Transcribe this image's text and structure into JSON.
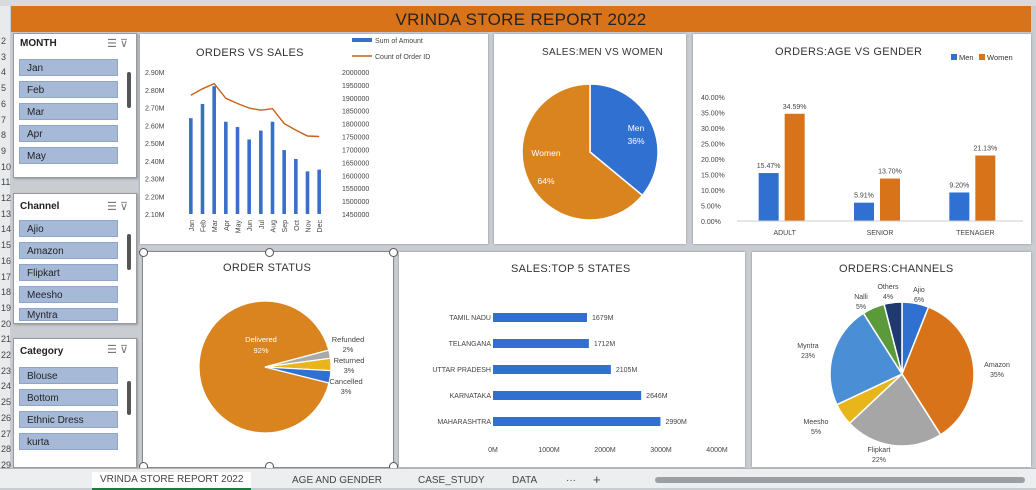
{
  "report_title": "VRINDA STORE REPORT 2022",
  "row_numbers": [
    "2",
    "3",
    "4",
    "5",
    "6",
    "7",
    "8",
    "9",
    "10",
    "11",
    "12",
    "13",
    "14",
    "15",
    "16",
    "17",
    "18",
    "19",
    "20",
    "21",
    "22",
    "23",
    "24",
    "25",
    "26",
    "27",
    "28",
    "29"
  ],
  "slicers": {
    "month": {
      "header": "MONTH",
      "items": [
        "Jan",
        "Feb",
        "Mar",
        "Apr",
        "May"
      ]
    },
    "channel": {
      "header": "Channel",
      "items": [
        "Ajio",
        "Amazon",
        "Flipkart",
        "Meesho",
        "Myntra"
      ]
    },
    "category": {
      "header": "Category",
      "items": [
        "Blouse",
        "Bottom",
        "Ethnic Dress",
        "kurta"
      ]
    }
  },
  "tabs": [
    "VRINDA STORE REPORT 2022",
    "AGE AND GENDER",
    "CASE_STUDY",
    "DATA",
    "···",
    "+"
  ],
  "chart_data": [
    {
      "type": "bar",
      "title": "ORDERS VS SALES",
      "categories": [
        "Jan",
        "Feb",
        "Mar",
        "Apr",
        "May",
        "Jun",
        "Jul",
        "Aug",
        "Sep",
        "Oct",
        "Nov",
        "Dec"
      ],
      "series": [
        {
          "name": "Sum of Amount",
          "type": "bar",
          "axis": "left",
          "values": [
            2.64,
            2.72,
            2.82,
            2.62,
            2.59,
            2.52,
            2.57,
            2.62,
            2.46,
            2.41,
            2.34,
            2.35
          ]
        },
        {
          "name": "Count of Order ID",
          "type": "line",
          "axis": "right",
          "values": [
            1910000,
            1935000,
            1955000,
            1898000,
            1878000,
            1860000,
            1852000,
            1858000,
            1800000,
            1775000,
            1752000,
            1750000
          ]
        }
      ],
      "left_axis": {
        "ticks": [
          "2.90M",
          "2.80M",
          "2.70M",
          "2.60M",
          "2.50M",
          "2.40M",
          "2.30M",
          "2.20M",
          "2.10M"
        ],
        "ylim": [
          2.1,
          2.9
        ]
      },
      "right_axis": {
        "ticks": [
          "2000000",
          "1950000",
          "1900000",
          "1850000",
          "1800000",
          "1750000",
          "1700000",
          "1650000",
          "1600000",
          "1550000",
          "1500000",
          "1450000"
        ],
        "ylim": [
          1450000,
          2000000
        ]
      },
      "colors": {
        "bar": "#3a6fc9",
        "line": "#c8601b"
      }
    },
    {
      "type": "pie",
      "title": "SALES:MEN VS WOMEN",
      "slices": [
        {
          "label": "Men",
          "value": 36,
          "text": "36%",
          "color": "#2f70d0"
        },
        {
          "label": "Women",
          "value": 64,
          "text": "64%",
          "color": "#d9841f"
        }
      ]
    },
    {
      "type": "bar",
      "title": "ORDERS:AGE VS GENDER",
      "categories": [
        "ADULT",
        "SENIOR",
        "TEENAGER"
      ],
      "series": [
        {
          "name": "Men",
          "values": [
            15.47,
            5.91,
            9.2
          ],
          "labels": [
            "15.47%",
            "5.91%",
            "9.20%"
          ],
          "color": "#2f70d0"
        },
        {
          "name": "Women",
          "values": [
            34.59,
            13.7,
            21.13
          ],
          "labels": [
            "34.59%",
            "13.70%",
            "21.13%"
          ],
          "color": "#d9731a"
        }
      ],
      "yticks": [
        "40.00%",
        "35.00%",
        "30.00%",
        "25.00%",
        "20.00%",
        "15.00%",
        "10.00%",
        "5.00%",
        "0.00%"
      ],
      "ylim": [
        0,
        40
      ],
      "legend": "top-right"
    },
    {
      "type": "pie",
      "title": "ORDER STATUS",
      "slices": [
        {
          "label": "Delivered",
          "value": 92,
          "text": "92%",
          "color": "#d9841f"
        },
        {
          "label": "Refunded",
          "value": 2,
          "text": "2%",
          "color": "#a9a9a9"
        },
        {
          "label": "Returned",
          "value": 3,
          "text": "3%",
          "color": "#e8b51a"
        },
        {
          "label": "Cancelled",
          "value": 3,
          "text": "3%",
          "color": "#2f70d0"
        }
      ]
    },
    {
      "type": "bar",
      "orientation": "horizontal",
      "title": "SALES:TOP 5 STATES",
      "categories": [
        "TAMIL NADU",
        "TELANGANA",
        "UTTAR PRADESH",
        "KARNATAKA",
        "MAHARASHTRA"
      ],
      "values": [
        1679,
        1712,
        2105,
        2646,
        2990
      ],
      "labels": [
        "1679M",
        "1712M",
        "2105M",
        "2646M",
        "2990M"
      ],
      "xticks": [
        "0M",
        "1000M",
        "2000M",
        "3000M",
        "4000M"
      ],
      "xlim": [
        0,
        4000
      ],
      "color": "#2f70d0"
    },
    {
      "type": "pie",
      "title": "ORDERS:CHANNELS",
      "slices": [
        {
          "label": "Ajio",
          "value": 6,
          "text": "6%",
          "color": "#2f70d0"
        },
        {
          "label": "Amazon",
          "value": 35,
          "text": "35%",
          "color": "#d9731a"
        },
        {
          "label": "Flipkart",
          "value": 22,
          "text": "22%",
          "color": "#a6a6a6"
        },
        {
          "label": "Meesho",
          "value": 5,
          "text": "5%",
          "color": "#e8b51a"
        },
        {
          "label": "Myntra",
          "value": 23,
          "text": "23%",
          "color": "#4a8ed6"
        },
        {
          "label": "Nalli",
          "value": 5,
          "text": "5%",
          "color": "#5a9a3a"
        },
        {
          "label": "Others",
          "value": 4,
          "text": "4%",
          "color": "#1e3a6e"
        }
      ]
    }
  ]
}
